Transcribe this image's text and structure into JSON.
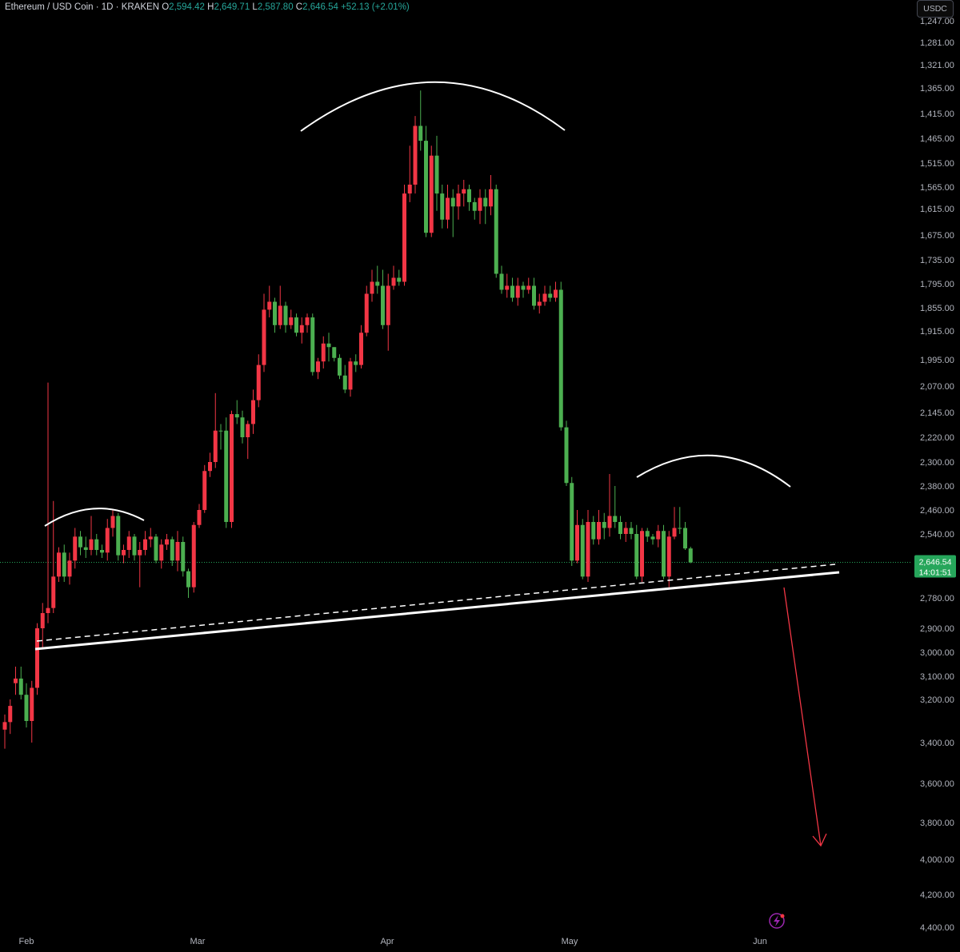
{
  "header": {
    "symbol": "Ethereum / USD Coin · 1D · KRAKEN",
    "o_label": "O",
    "o_value": "2,594.42",
    "h_label": "H",
    "h_value": "2,649.71",
    "l_label": "L",
    "l_value": "2,587.80",
    "c_label": "C",
    "c_value": "2,646.54",
    "change": "+52.13 (+2.01%)"
  },
  "quote_currency": "USDC",
  "price_badge": {
    "price": "2,646.54",
    "countdown": "14:01:51"
  },
  "colors": {
    "up": "#4caf50",
    "down": "#f23645",
    "badge": "#26a65b",
    "pattern": "#ffffff",
    "target_arrow": "#f23645"
  },
  "chart_data": {
    "type": "candlestick",
    "y_axis": {
      "position": "right",
      "inverted": true,
      "ticks": [
        "1,247.00",
        "1,281.00",
        "1,321.00",
        "1,365.00",
        "1,415.00",
        "1,465.00",
        "1,515.00",
        "1,565.00",
        "1,615.00",
        "1,675.00",
        "1,735.00",
        "1,795.00",
        "1,855.00",
        "1,915.00",
        "1,995.00",
        "2,070.00",
        "2,145.00",
        "2,220.00",
        "2,300.00",
        "2,380.00",
        "2,460.00",
        "2,540.00",
        "2,780.00",
        "2,900.00",
        "3,000.00",
        "3,100.00",
        "3,200.00",
        "3,400.00",
        "3,600.00",
        "3,800.00",
        "4,000.00",
        "4,200.00",
        "4,400.00"
      ]
    },
    "x_axis": {
      "ticks": [
        "Feb",
        "Mar",
        "Apr",
        "May",
        "Jun"
      ]
    },
    "dates": [
      "2025-01-26",
      "2025-06-05"
    ],
    "last_price": 2646.54,
    "candles": [
      [
        3340,
        3305,
        3430,
        3270
      ],
      [
        3305,
        3230,
        3360,
        3200
      ],
      [
        3130,
        3110,
        3180,
        3060
      ],
      [
        3110,
        3180,
        3200,
        3060
      ],
      [
        3180,
        3300,
        3330,
        3130
      ],
      [
        3300,
        3150,
        3400,
        3120
      ],
      [
        3150,
        2900,
        3180,
        2880
      ],
      [
        2900,
        2840,
        2980,
        2800
      ],
      [
        2840,
        2820,
        2880,
        2060
      ],
      [
        2820,
        2700,
        2840,
        2430
      ],
      [
        2700,
        2610,
        2720,
        2590
      ],
      [
        2610,
        2700,
        2720,
        2580
      ],
      [
        2700,
        2640,
        2730,
        2610
      ],
      [
        2640,
        2550,
        2670,
        2520
      ],
      [
        2550,
        2590,
        2620,
        2530
      ],
      [
        2590,
        2600,
        2630,
        2550
      ],
      [
        2600,
        2560,
        2620,
        2480
      ],
      [
        2560,
        2600,
        2620,
        2540
      ],
      [
        2600,
        2610,
        2630,
        2580
      ],
      [
        2610,
        2520,
        2640,
        2490
      ],
      [
        2520,
        2480,
        2550,
        2460
      ],
      [
        2480,
        2620,
        2640,
        2470
      ],
      [
        2620,
        2600,
        2650,
        2580
      ],
      [
        2600,
        2550,
        2630,
        2530
      ],
      [
        2550,
        2620,
        2640,
        2540
      ],
      [
        2620,
        2600,
        2740,
        2570
      ],
      [
        2600,
        2560,
        2620,
        2530
      ],
      [
        2560,
        2550,
        2590,
        2520
      ],
      [
        2550,
        2640,
        2650,
        2540
      ],
      [
        2640,
        2580,
        2670,
        2560
      ],
      [
        2580,
        2560,
        2600,
        2540
      ],
      [
        2560,
        2640,
        2660,
        2550
      ],
      [
        2640,
        2570,
        2680,
        2530
      ],
      [
        2570,
        2680,
        2700,
        2550
      ],
      [
        2680,
        2740,
        2780,
        2670
      ],
      [
        2740,
        2510,
        2760,
        2500
      ],
      [
        2510,
        2460,
        2520,
        2440
      ],
      [
        2460,
        2330,
        2470,
        2310
      ],
      [
        2330,
        2300,
        2350,
        2270
      ],
      [
        2300,
        2200,
        2320,
        2090
      ],
      [
        2200,
        2200,
        2260,
        2180
      ],
      [
        2200,
        2500,
        2520,
        2160
      ],
      [
        2500,
        2150,
        2520,
        2140
      ],
      [
        2150,
        2160,
        2180,
        2110
      ],
      [
        2160,
        2220,
        2240,
        2140
      ],
      [
        2220,
        2180,
        2290,
        2170
      ],
      [
        2180,
        2110,
        2210,
        2080
      ],
      [
        2110,
        2010,
        2130,
        1980
      ],
      [
        2010,
        1860,
        2030,
        1820
      ],
      [
        1860,
        1840,
        1880,
        1800
      ],
      [
        1840,
        1900,
        1920,
        1830
      ],
      [
        1900,
        1850,
        1910,
        1800
      ],
      [
        1850,
        1900,
        1920,
        1840
      ],
      [
        1900,
        1880,
        1910,
        1860
      ],
      [
        1880,
        1920,
        1930,
        1870
      ],
      [
        1920,
        1900,
        1950,
        1880
      ],
      [
        1900,
        1880,
        1920,
        1870
      ],
      [
        1880,
        2030,
        2040,
        1870
      ],
      [
        2030,
        2000,
        2050,
        1990
      ],
      [
        2000,
        1950,
        2020,
        1930
      ],
      [
        1950,
        1960,
        2000,
        1920
      ],
      [
        1960,
        1990,
        2000,
        1960
      ],
      [
        1990,
        2040,
        2050,
        1980
      ],
      [
        2040,
        2080,
        2090,
        2010
      ],
      [
        2080,
        2000,
        2100,
        1990
      ],
      [
        2000,
        2010,
        2030,
        1980
      ],
      [
        2010,
        1920,
        2020,
        1900
      ],
      [
        1920,
        1820,
        1930,
        1800
      ],
      [
        1820,
        1790,
        1840,
        1760
      ],
      [
        1790,
        1800,
        1820,
        1750
      ],
      [
        1800,
        1900,
        1910,
        1760
      ],
      [
        1900,
        1800,
        1970,
        1770
      ],
      [
        1800,
        1780,
        1810,
        1750
      ],
      [
        1780,
        1790,
        1800,
        1760
      ],
      [
        1790,
        1580,
        1800,
        1560
      ],
      [
        1580,
        1560,
        1600,
        1480
      ],
      [
        1560,
        1440,
        1580,
        1420
      ],
      [
        1440,
        1470,
        1490,
        1370
      ],
      [
        1470,
        1670,
        1680,
        1440
      ],
      [
        1670,
        1500,
        1680,
        1480
      ],
      [
        1500,
        1580,
        1620,
        1460
      ],
      [
        1580,
        1640,
        1660,
        1560
      ],
      [
        1640,
        1590,
        1660,
        1560
      ],
      [
        1590,
        1610,
        1680,
        1570
      ],
      [
        1610,
        1580,
        1640,
        1560
      ],
      [
        1580,
        1570,
        1610,
        1550
      ],
      [
        1570,
        1600,
        1620,
        1560
      ],
      [
        1600,
        1620,
        1640,
        1590
      ],
      [
        1620,
        1590,
        1650,
        1570
      ],
      [
        1590,
        1610,
        1650,
        1570
      ],
      [
        1610,
        1570,
        1630,
        1540
      ],
      [
        1570,
        1770,
        1780,
        1560
      ],
      [
        1770,
        1810,
        1820,
        1750
      ],
      [
        1810,
        1800,
        1830,
        1770
      ],
      [
        1800,
        1830,
        1840,
        1780
      ],
      [
        1830,
        1800,
        1850,
        1780
      ],
      [
        1800,
        1810,
        1830,
        1790
      ],
      [
        1810,
        1800,
        1820,
        1780
      ],
      [
        1800,
        1850,
        1860,
        1780
      ],
      [
        1850,
        1840,
        1870,
        1820
      ],
      [
        1840,
        1820,
        1850,
        1800
      ],
      [
        1820,
        1830,
        1840,
        1800
      ],
      [
        1830,
        1810,
        1840,
        1790
      ],
      [
        1810,
        2190,
        2200,
        1790
      ],
      [
        2190,
        2370,
        2380,
        2170
      ],
      [
        2370,
        2640,
        2660,
        2350
      ],
      [
        2640,
        2510,
        2650,
        2460
      ],
      [
        2510,
        2700,
        2710,
        2490
      ],
      [
        2700,
        2500,
        2720,
        2460
      ],
      [
        2500,
        2560,
        2580,
        2480
      ],
      [
        2560,
        2500,
        2580,
        2460
      ],
      [
        2500,
        2520,
        2560,
        2470
      ],
      [
        2520,
        2480,
        2550,
        2340
      ],
      [
        2480,
        2500,
        2520,
        2380
      ],
      [
        2500,
        2540,
        2560,
        2480
      ],
      [
        2540,
        2520,
        2570,
        2500
      ],
      [
        2520,
        2540,
        2560,
        2500
      ],
      [
        2540,
        2700,
        2710,
        2510
      ],
      [
        2700,
        2530,
        2720,
        2520
      ],
      [
        2530,
        2550,
        2570,
        2520
      ],
      [
        2550,
        2560,
        2580,
        2540
      ],
      [
        2560,
        2530,
        2590,
        2510
      ],
      [
        2530,
        2700,
        2710,
        2510
      ],
      [
        2700,
        2550,
        2740,
        2530
      ],
      [
        2550,
        2520,
        2560,
        2450
      ],
      [
        2520,
        2520,
        2540,
        2450
      ],
      [
        2520,
        2594.42,
        2600,
        2500
      ],
      [
        2594.42,
        2646.54,
        2649.71,
        2587.8
      ]
    ],
    "overlays": [
      {
        "kind": "arc",
        "desc": "shoulder"
      },
      {
        "kind": "arc",
        "desc": "head"
      },
      {
        "kind": "arc",
        "desc": "shoulder"
      },
      {
        "kind": "line",
        "desc": "neckline",
        "style": "solid"
      },
      {
        "kind": "line",
        "desc": "neckline",
        "style": "dashed"
      },
      {
        "kind": "arrow",
        "desc": "projected move"
      }
    ]
  }
}
